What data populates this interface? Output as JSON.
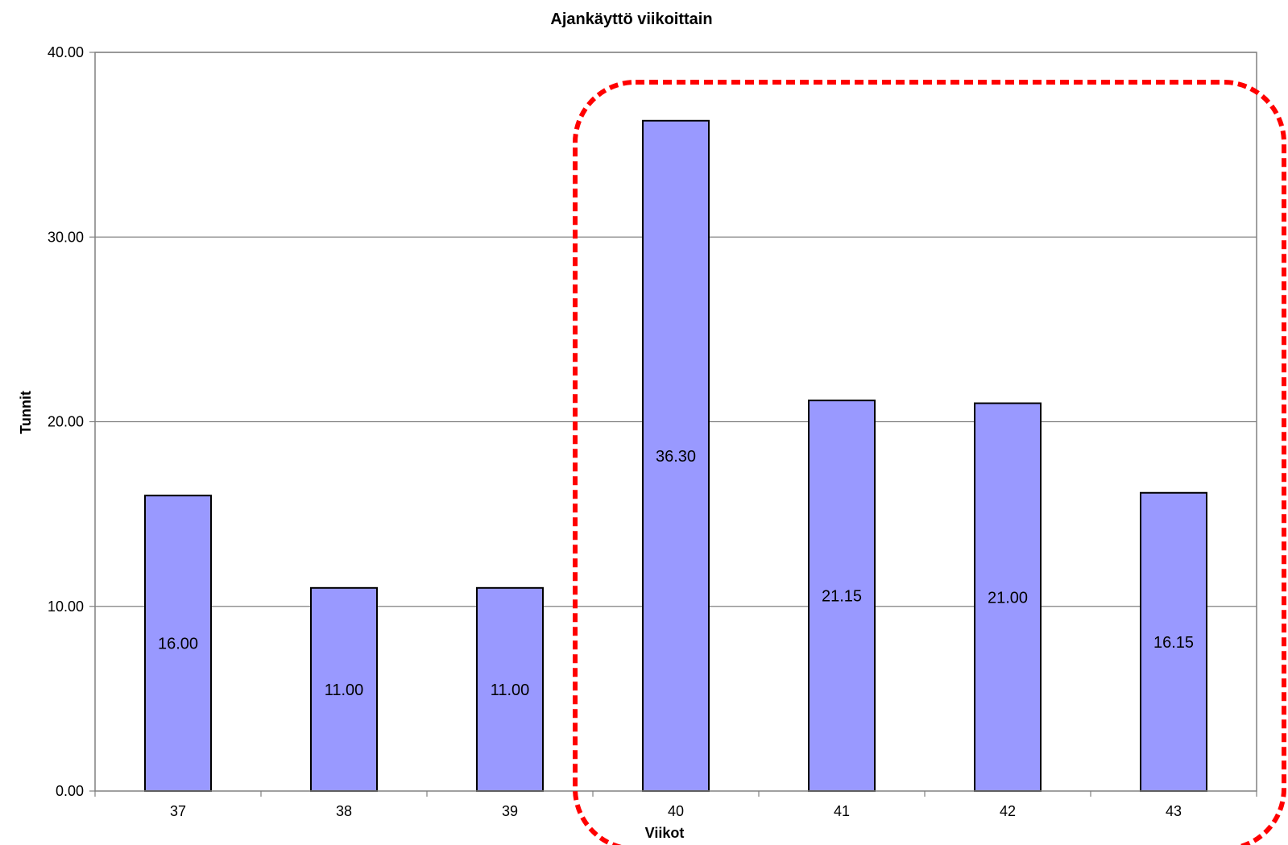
{
  "chart_data": {
    "type": "bar",
    "title": "Ajankäyttö viikoittain",
    "xlabel": "Viikot",
    "ylabel": "Tunnit",
    "categories": [
      "37",
      "38",
      "39",
      "40",
      "41",
      "42",
      "43"
    ],
    "values": [
      16.0,
      11.0,
      11.0,
      36.3,
      21.15,
      21.0,
      16.15
    ],
    "data_labels": [
      "16.00",
      "11.00",
      "11.00",
      "36.30",
      "21.15",
      "21.00",
      "16.15"
    ],
    "ylim": [
      0,
      40
    ],
    "yticks": [
      0,
      10,
      20,
      30,
      40
    ],
    "ytick_labels": [
      "0.00",
      "10.00",
      "20.00",
      "30.00",
      "40.00"
    ],
    "grid": true,
    "bar_color": "#9999FF",
    "annotation": {
      "type": "dashed-rounded-box",
      "color": "#FF0000",
      "covers_categories": [
        "40",
        "41",
        "42",
        "43"
      ]
    }
  }
}
